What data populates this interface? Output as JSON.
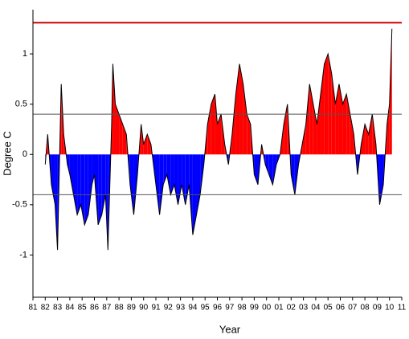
{
  "chart_data": {
    "type": "area",
    "x_label": "Year",
    "y_label": "Degree C",
    "x": [
      1982.0,
      1982.2,
      1982.5,
      1982.8,
      1983.0,
      1983.3,
      1983.5,
      1983.8,
      1984.0,
      1984.3,
      1984.6,
      1984.9,
      1985.2,
      1985.5,
      1985.8,
      1986.0,
      1986.3,
      1986.6,
      1986.9,
      1987.1,
      1987.4,
      1987.5,
      1987.7,
      1988.0,
      1988.3,
      1988.6,
      1988.9,
      1989.2,
      1989.5,
      1989.8,
      1990.0,
      1990.3,
      1990.6,
      1991.0,
      1991.3,
      1991.6,
      1991.9,
      1992.2,
      1992.5,
      1992.8,
      1993.1,
      1993.4,
      1993.7,
      1994.0,
      1994.3,
      1994.6,
      1994.9,
      1995.2,
      1995.5,
      1995.8,
      1996.0,
      1996.3,
      1996.6,
      1996.9,
      1997.2,
      1997.5,
      1997.8,
      1998.1,
      1998.4,
      1998.7,
      1999.0,
      1999.3,
      1999.6,
      1999.9,
      2000.2,
      2000.5,
      2000.8,
      2001.1,
      2001.4,
      2001.7,
      2002.0,
      2002.3,
      2002.6,
      2002.9,
      2003.2,
      2003.5,
      2003.8,
      2004.1,
      2004.4,
      2004.7,
      2005.0,
      2005.3,
      2005.6,
      2005.9,
      2006.2,
      2006.5,
      2006.8,
      2007.1,
      2007.4,
      2007.7,
      2008.0,
      2008.3,
      2008.6,
      2008.9,
      2009.2,
      2009.5,
      2009.8,
      2010.0,
      2010.2
    ],
    "values": [
      -0.1,
      0.2,
      -0.3,
      -0.5,
      -0.95,
      0.7,
      0.2,
      -0.1,
      -0.2,
      -0.4,
      -0.6,
      -0.5,
      -0.7,
      -0.6,
      -0.3,
      -0.2,
      -0.7,
      -0.6,
      -0.4,
      -0.95,
      0.3,
      0.9,
      0.5,
      0.4,
      0.3,
      0.2,
      -0.3,
      -0.6,
      -0.2,
      0.3,
      0.1,
      0.2,
      0.1,
      -0.3,
      -0.6,
      -0.3,
      -0.2,
      -0.4,
      -0.3,
      -0.5,
      -0.3,
      -0.5,
      -0.3,
      -0.8,
      -0.6,
      -0.4,
      -0.1,
      0.3,
      0.5,
      0.6,
      0.3,
      0.4,
      0.1,
      -0.1,
      0.2,
      0.6,
      0.9,
      0.7,
      0.4,
      0.3,
      -0.2,
      -0.3,
      0.1,
      -0.1,
      -0.2,
      -0.3,
      -0.1,
      0.0,
      0.3,
      0.5,
      -0.2,
      -0.4,
      -0.1,
      0.1,
      0.3,
      0.7,
      0.5,
      0.3,
      0.6,
      0.9,
      1.0,
      0.8,
      0.5,
      0.7,
      0.5,
      0.6,
      0.4,
      0.2,
      -0.2,
      0.1,
      0.3,
      0.2,
      0.4,
      0.1,
      -0.5,
      -0.3,
      0.3,
      0.5,
      1.25
    ],
    "line_color": "#000000",
    "positive_color": "#ff0000",
    "negative_color": "#0000ff",
    "reference_lines": [
      {
        "value": 1.31,
        "color": "#cc0000"
      },
      {
        "value": 0.4,
        "color": "#555555"
      },
      {
        "value": -0.4,
        "color": "#555555"
      }
    ],
    "xlim": [
      1981,
      2011
    ],
    "ylim": [
      -1.42,
      1.44
    ],
    "xticks": [
      {
        "value": 1981,
        "label": "81"
      },
      {
        "value": 1982,
        "label": "82"
      },
      {
        "value": 1983,
        "label": "83"
      },
      {
        "value": 1984,
        "label": "84"
      },
      {
        "value": 1985,
        "label": "85"
      },
      {
        "value": 1986,
        "label": "86"
      },
      {
        "value": 1987,
        "label": "87"
      },
      {
        "value": 1988,
        "label": "88"
      },
      {
        "value": 1989,
        "label": "89"
      },
      {
        "value": 1990,
        "label": "90"
      },
      {
        "value": 1991,
        "label": "91"
      },
      {
        "value": 1992,
        "label": "92"
      },
      {
        "value": 1993,
        "label": "93"
      },
      {
        "value": 1994,
        "label": "94"
      },
      {
        "value": 1995,
        "label": "95"
      },
      {
        "value": 1996,
        "label": "96"
      },
      {
        "value": 1997,
        "label": "97"
      },
      {
        "value": 1998,
        "label": "98"
      },
      {
        "value": 1999,
        "label": "99"
      },
      {
        "value": 2000,
        "label": "00"
      },
      {
        "value": 2001,
        "label": "01"
      },
      {
        "value": 2002,
        "label": "02"
      },
      {
        "value": 2003,
        "label": "03"
      },
      {
        "value": 2004,
        "label": "04"
      },
      {
        "value": 2005,
        "label": "05"
      },
      {
        "value": 2006,
        "label": "06"
      },
      {
        "value": 2007,
        "label": "07"
      },
      {
        "value": 2008,
        "label": "08"
      },
      {
        "value": 2009,
        "label": "09"
      },
      {
        "value": 2010,
        "label": "10"
      },
      {
        "value": 2011,
        "label": "11"
      }
    ],
    "yticks": [
      -1,
      -0.5,
      0,
      0.5,
      1
    ]
  }
}
